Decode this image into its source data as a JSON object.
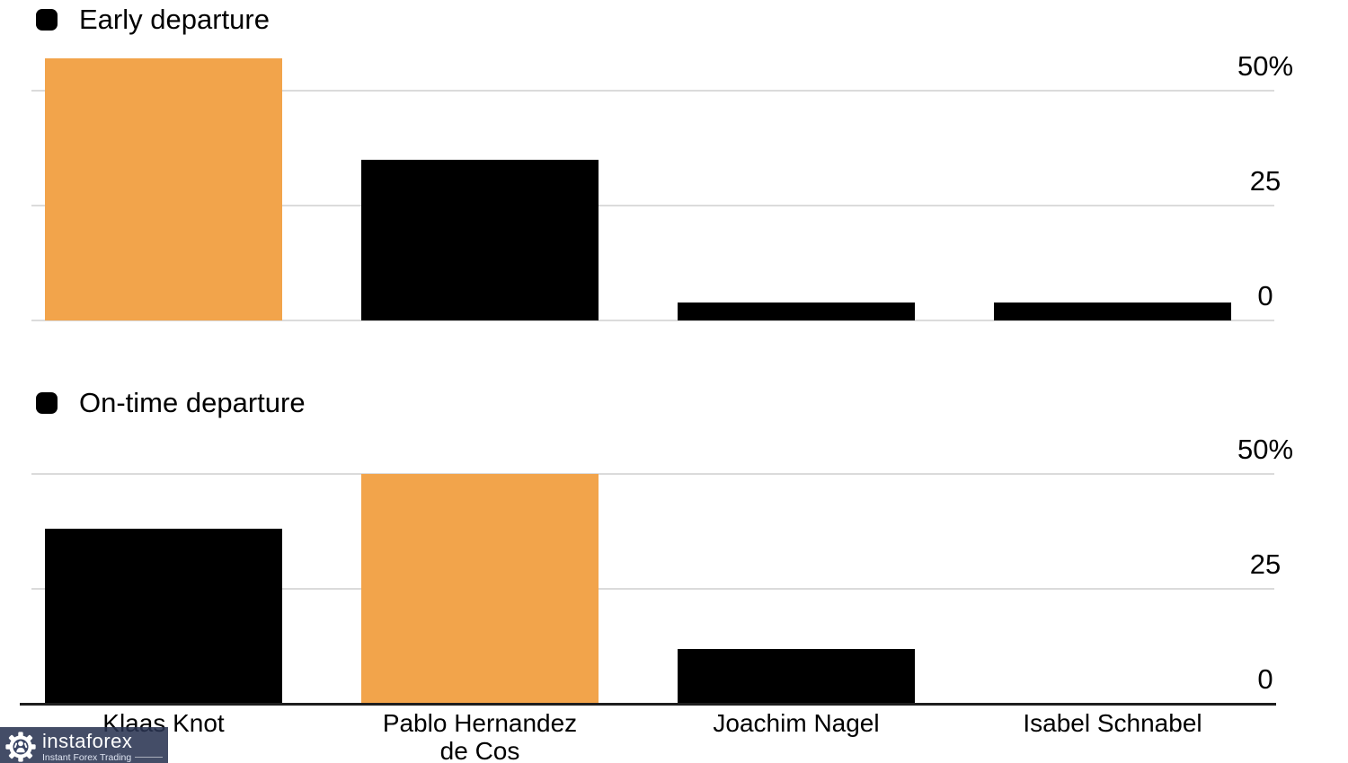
{
  "colors": {
    "accent_orange": "#F2A44B",
    "bar_black": "#000000",
    "gridline_gray": "#DBDBDB",
    "axis_dark": "#1E1E1E",
    "watermark_bg": "#283250",
    "text": "#000000"
  },
  "watermark": {
    "brand": "instaforex",
    "tagline": "Instant Forex Trading"
  },
  "chart_data": [
    {
      "type": "bar",
      "legend_label": "Early departure",
      "categories": [
        "Klaas Knot",
        "Pablo Hernandez\nde Cos",
        "Joachim Nagel",
        "Isabel Schnabel"
      ],
      "values": [
        57,
        35,
        4,
        4
      ],
      "unit": "%",
      "bar_colors": [
        "#F2A44B",
        "#000000",
        "#000000",
        "#000000"
      ],
      "yticks": [
        0,
        25,
        50
      ],
      "ytick_labels": [
        "0",
        "25",
        "50%"
      ],
      "ylim": [
        0,
        58
      ],
      "legend_position": "top-left",
      "axis_labels_position": "right",
      "grid": true,
      "show_category_labels": false,
      "baseline_style": "light"
    },
    {
      "type": "bar",
      "legend_label": "On-time departure",
      "categories": [
        "Klaas Knot",
        "Pablo Hernandez\nde Cos",
        "Joachim Nagel",
        "Isabel Schnabel"
      ],
      "values": [
        38,
        50,
        12,
        0
      ],
      "unit": "%",
      "bar_colors": [
        "#000000",
        "#F2A44B",
        "#000000",
        "#000000"
      ],
      "yticks": [
        0,
        25,
        50
      ],
      "ytick_labels": [
        "0",
        "25",
        "50%"
      ],
      "ylim": [
        0,
        58
      ],
      "legend_position": "top-left",
      "axis_labels_position": "right",
      "grid": true,
      "show_category_labels": true,
      "baseline_style": "dark"
    }
  ]
}
